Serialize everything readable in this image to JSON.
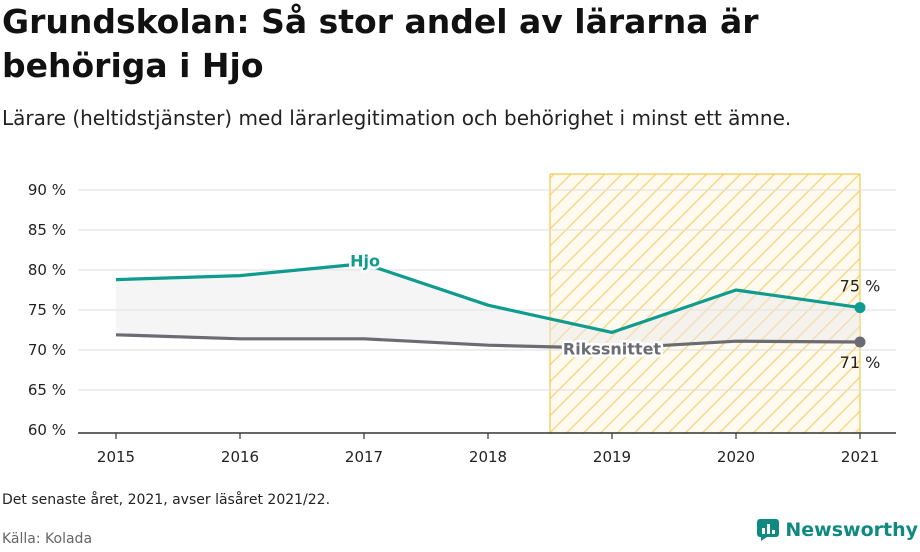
{
  "chart_data": {
    "type": "line",
    "title": "Grundskolan: Så stor andel av lärarna är behöriga i Hjo",
    "subtitle": "Lärare (heltidstjänster) med lärarlegitimation och behörighet i minst ett ämne.",
    "x": [
      "2015",
      "2016",
      "2017",
      "2018",
      "2019",
      "2020",
      "2021"
    ],
    "ylim": [
      60,
      92
    ],
    "yticks": [
      60,
      65,
      70,
      75,
      80,
      85,
      90
    ],
    "ytick_labels": [
      "60 %",
      "65 %",
      "70 %",
      "75 %",
      "80 %",
      "85 %",
      "90 %"
    ],
    "tick_suffix": " %",
    "grid": true,
    "highlight_range": [
      "2018.5",
      "2021"
    ],
    "series": [
      {
        "name": "Hjo",
        "values": [
          78.8,
          79.3,
          80.8,
          75.6,
          72.2,
          77.5,
          75.3
        ],
        "color": "#0f9c8f",
        "end_label": "75 %"
      },
      {
        "name": "Rikssnittet",
        "values": [
          71.9,
          71.4,
          71.4,
          70.6,
          70.2,
          71.1,
          71.0
        ],
        "color": "#6b6b73",
        "end_label": "71 %"
      }
    ]
  },
  "footer": {
    "note": "Det senaste året, 2021, avser läsåret 2021/22.",
    "source": "Källa: Kolada",
    "brand": "Newsworthy",
    "brand_icon": "bar-chart-logo-icon",
    "brand_color": "#0f8a80"
  }
}
